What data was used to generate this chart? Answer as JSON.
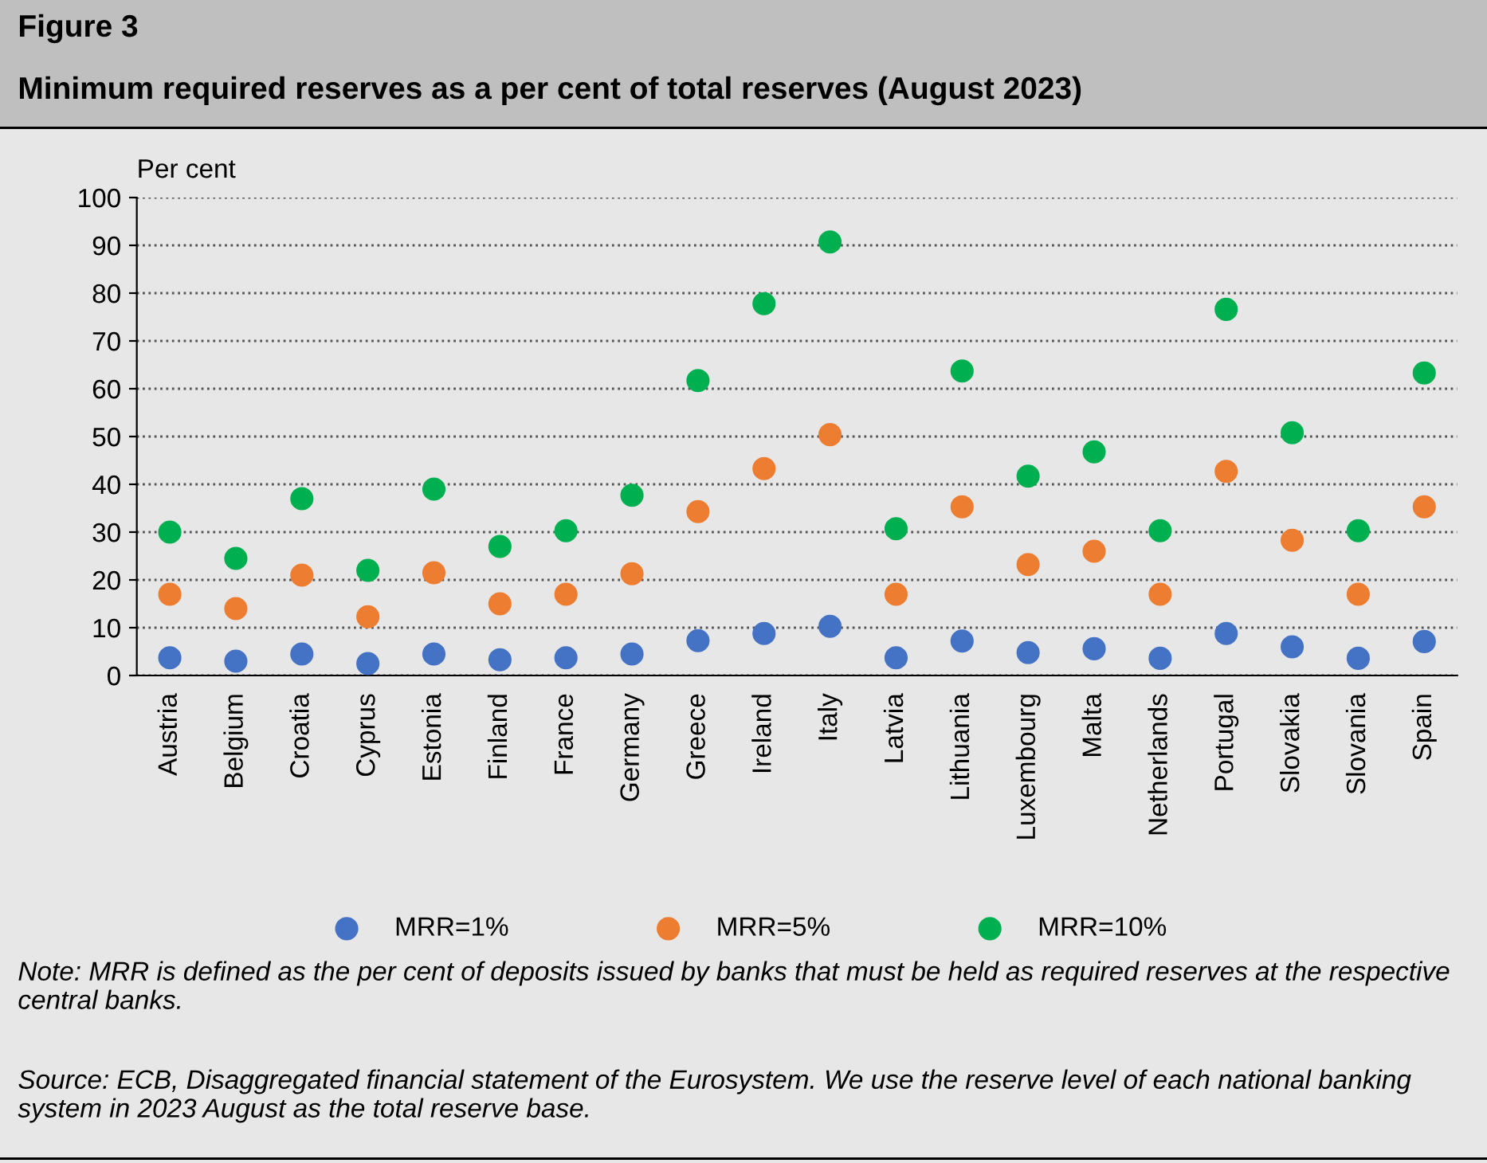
{
  "chart_data": {
    "type": "scatter",
    "title": "Figure 3",
    "subtitle": "Minimum required reserves as a per cent of total reserves (August 2023)",
    "ylabel": "Per cent",
    "categories": [
      "Austria",
      "Belgium",
      "Croatia",
      "Cyprus",
      "Estonia",
      "Finland",
      "France",
      "Germany",
      "Greece",
      "Ireland",
      "Italy",
      "Latvia",
      "Lithuania",
      "Luxembourg",
      "Malta",
      "Netherlands",
      "Portugal",
      "Slovakia",
      "Slovania",
      "Spain"
    ],
    "series": [
      {
        "name": "MRR=1%",
        "color": "#4472c4",
        "values": [
          3.7,
          3,
          4.5,
          2.5,
          4.5,
          3.3,
          3.7,
          4.5,
          7.3,
          8.8,
          10.3,
          3.7,
          7.2,
          4.8,
          5.6,
          3.6,
          8.8,
          6,
          3.6,
          7.1
        ]
      },
      {
        "name": "MRR=5%",
        "color": "#ed7d31",
        "values": [
          17,
          14,
          21,
          12.3,
          21.5,
          15,
          17,
          21.3,
          34.3,
          43.3,
          50.4,
          17,
          35.3,
          23.2,
          26,
          17,
          42.7,
          28.3,
          17,
          35.3
        ]
      },
      {
        "name": "MRR=10%",
        "color": "#00b050",
        "values": [
          30,
          24.5,
          37,
          22,
          39,
          27,
          30.3,
          37.7,
          61.7,
          77.8,
          90.7,
          30.7,
          63.7,
          41.7,
          46.8,
          30.3,
          76.6,
          50.8,
          30.3,
          63.3
        ]
      }
    ],
    "ylim": [
      0,
      100
    ],
    "yticks": [
      0,
      10,
      20,
      30,
      40,
      50,
      60,
      70,
      80,
      90,
      100
    ],
    "grid": "y",
    "legend": "bottom",
    "marker": "circle",
    "annotations": [
      "Note: MRR is defined as the per cent of deposits issued by banks that must be held as required reserves at the respective central banks.",
      "Source: ECB, Disaggregated financial statement of the Eurosystem. We use the reserve level of each national banking system in 2023 August as the total reserve base."
    ]
  }
}
